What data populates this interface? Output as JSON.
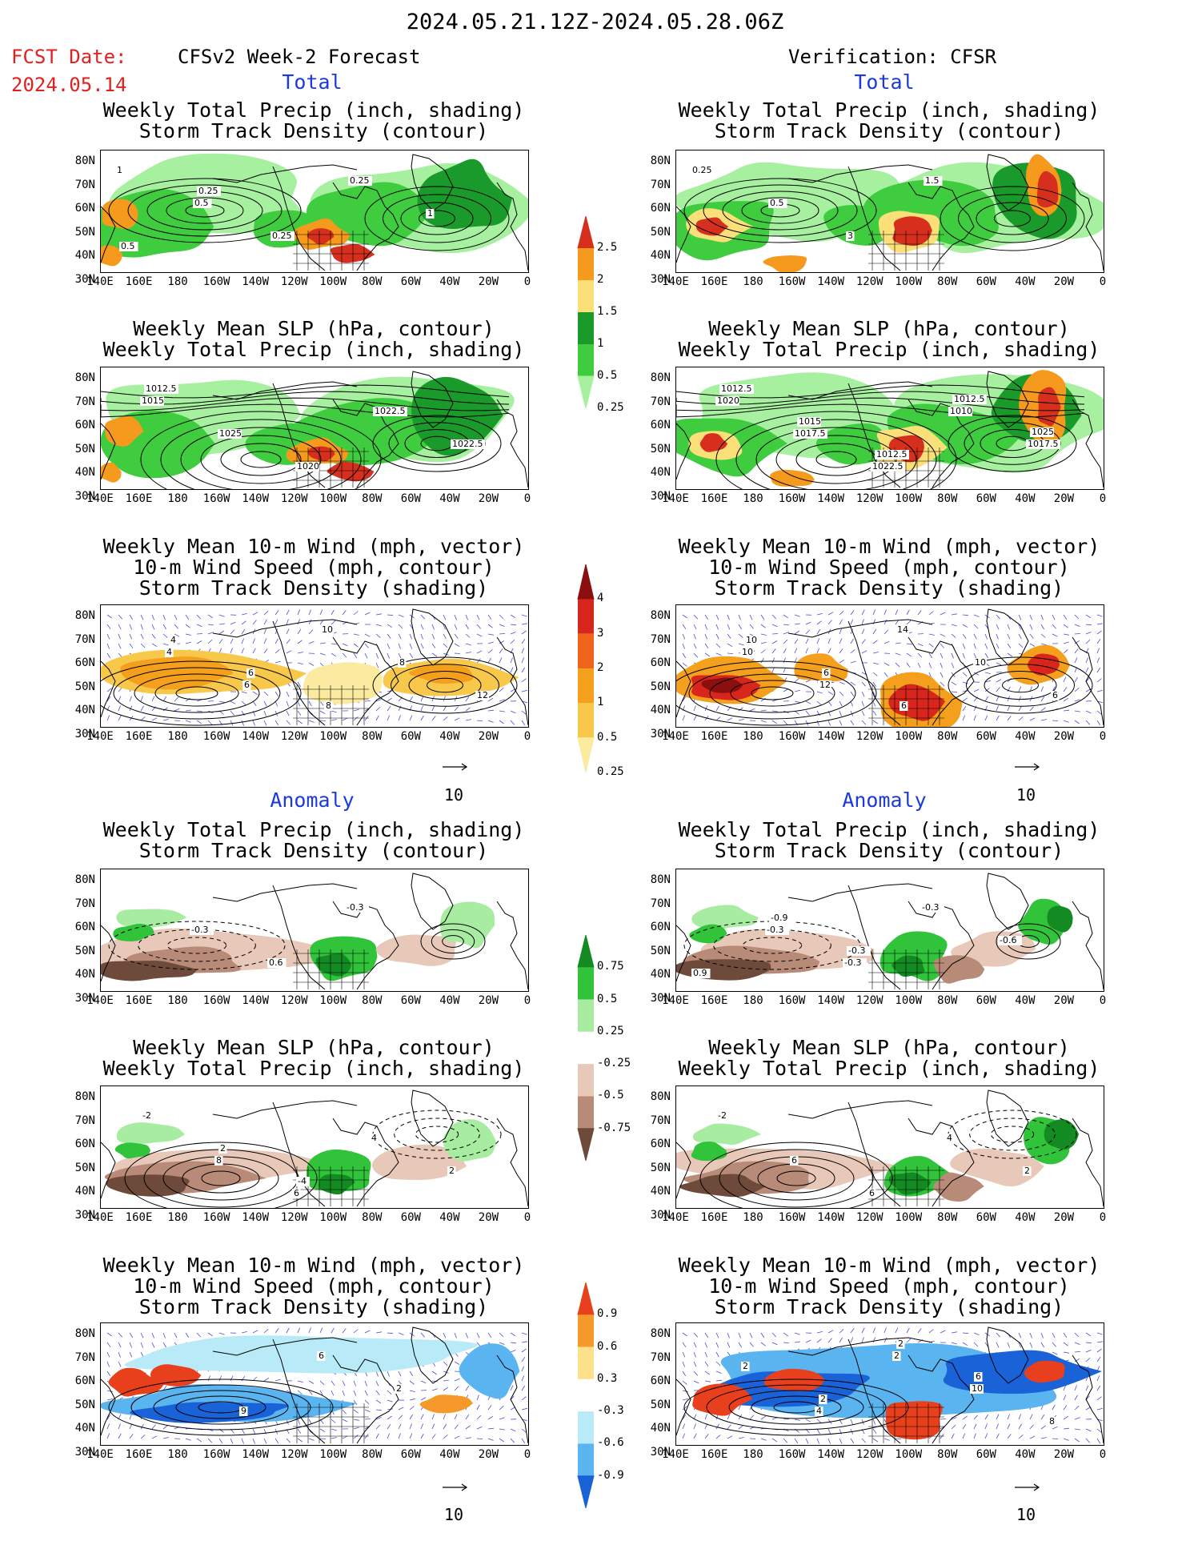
{
  "header": {
    "period": "2024.05.21.12Z-2024.05.28.06Z",
    "fcst_label": "FCST Date:",
    "fcst_date": "2024.05.14",
    "left_title": "CFSv2 Week-2 Forecast",
    "right_title": "Verification: CFSR"
  },
  "sections": {
    "total": "Total",
    "anomaly": "Anomaly"
  },
  "titles": {
    "precip_storm": [
      "Weekly Total Precip (inch, shading)",
      "Storm Track Density (contour)"
    ],
    "slp_precip": [
      "Weekly Mean SLP (hPa, contour)",
      "Weekly Total Precip (inch, shading)"
    ],
    "wind_storm": [
      "Weekly Mean 10-m Wind (mph, vector)",
      "10-m Wind Speed (mph, contour)",
      "Storm Track Density (shading)"
    ]
  },
  "axes": {
    "lat_ticks": [
      "80N",
      "70N",
      "60N",
      "50N",
      "40N",
      "30N"
    ],
    "lon_ticks": [
      "140E",
      "160E",
      "180",
      "160W",
      "140W",
      "120W",
      "100W",
      "80W",
      "60W",
      "40W",
      "20W",
      "0"
    ]
  },
  "vector_ref": "10",
  "colorbars": {
    "precip_total": {
      "labels": [
        "2.5",
        "2",
        "1.5",
        "1",
        "0.5",
        "0.25"
      ],
      "colors": [
        "#d62f1e",
        "#f59a1c",
        "#fbe07a",
        "#1a9a2a",
        "#3fcc3f",
        "#a6f0a0"
      ]
    },
    "storm_total": {
      "labels": [
        "4",
        "3",
        "2",
        "1",
        "0.5",
        "0.25"
      ],
      "colors": [
        "#8b0f0f",
        "#d8261c",
        "#f0641c",
        "#f5a01c",
        "#f7c84a",
        "#fbeaa0"
      ]
    },
    "precip_anom": {
      "labels": [
        "0.75",
        "0.5",
        "0.25",
        "-0.25",
        "-0.5",
        "-0.75"
      ],
      "colors": [
        "#138a22",
        "#31c33a",
        "#a8eca2",
        "#ffffff",
        "#e8c8b8",
        "#b88a78",
        "#6e4a3a"
      ]
    },
    "storm_anom": {
      "labels": [
        "0.9",
        "0.6",
        "0.3",
        "-0.3",
        "-0.6",
        "-0.9"
      ],
      "colors": [
        "#e8401c",
        "#f59a2a",
        "#fce08a",
        "#ffffff",
        "#b8eaf8",
        "#5ab4f0",
        "#1a62d8"
      ]
    }
  },
  "contour_labels": {
    "fc_ps": [
      "1",
      "0.5",
      "0.25",
      "0.25",
      "1",
      "0.5",
      "0.25"
    ],
    "vr_ps": [
      "0.25",
      "0.5",
      "3",
      "1.5"
    ],
    "fc_slp": [
      "1015",
      "1025",
      "1020",
      "1022.5",
      "1022.5",
      "1012.5"
    ],
    "vr_slp": [
      "1020",
      "1017.5",
      "1022.5",
      "1010",
      "1017.5",
      "1012.5",
      "1015",
      "1012.5",
      "1012.5",
      "1025"
    ],
    "fc_wind": [
      "4",
      "6",
      "10",
      "8",
      "12",
      "4",
      "6",
      "8"
    ],
    "vr_wind": [
      "10",
      "12",
      "14",
      "10",
      "6",
      "10",
      "6",
      "6"
    ],
    "fc_aps": [
      "-0.3",
      "0.6",
      "-0.3"
    ],
    "vr_aps": [
      "-0.3",
      "-0.3",
      "-0.3",
      "-0.6",
      "0.9",
      "-0.9",
      "-0.3"
    ],
    "fc_aslp": [
      "8",
      "6",
      "4",
      "2",
      "-2",
      "2",
      "-4"
    ],
    "vr_aslp": [
      "6",
      "6",
      "4",
      "2",
      "-2"
    ],
    "fc_awind": [
      "9",
      "6",
      "2"
    ],
    "vr_awind": [
      "4",
      "2",
      "10",
      "8",
      "2",
      "2",
      "2",
      "6"
    ]
  }
}
